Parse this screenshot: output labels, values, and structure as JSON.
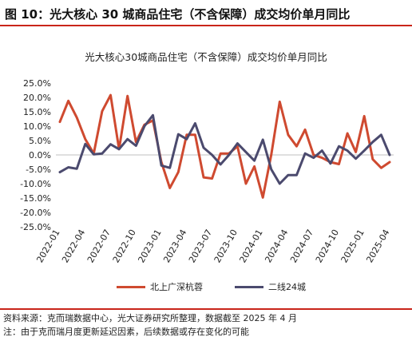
{
  "figure_title": "图 10：光大核心 30 城商品住宅（不含保障）成交均价单月同比",
  "source_note": "资料来源：克而瑞数据中心，光大证券研究所整理，数据截至 2025 年 4 月",
  "footnote": "注：由于克而瑞月度更新延迟因素，后续数据或存在变化的可能",
  "colors": {
    "accent_rule": "#c9251a",
    "series_1": "#cf4a30",
    "series_2": "#4b4a6e"
  },
  "chart_data": {
    "type": "line",
    "title": "光大核心30城商品住宅（不含保障）成交均价单月同比",
    "xlabel": "",
    "ylabel": "",
    "ylim": [
      -25,
      25
    ],
    "ytick_values": [
      -25,
      -20,
      -15,
      -10,
      -5,
      0,
      5,
      10,
      15,
      20,
      25
    ],
    "ytick_labels": [
      "-25.0%",
      "-20.0%",
      "-15.0%",
      "-10.0%",
      "-5.0%",
      "0.0%",
      "5.0%",
      "10.0%",
      "15.0%",
      "20.0%",
      "25.0%"
    ],
    "xtick_labels": [
      "2022-01",
      "2022-04",
      "2022-07",
      "2022-10",
      "2023-01",
      "2023-04",
      "2023-07",
      "2023-10",
      "2024-01",
      "2024-04",
      "2024-07",
      "2024-10",
      "2025-01",
      "2025-04"
    ],
    "x": [
      "2022-01",
      "2022-02",
      "2022-03",
      "2022-04",
      "2022-05",
      "2022-06",
      "2022-07",
      "2022-08",
      "2022-09",
      "2022-10",
      "2022-11",
      "2022-12",
      "2023-01",
      "2023-02",
      "2023-03",
      "2023-04",
      "2023-05",
      "2023-06",
      "2023-07",
      "2023-08",
      "2023-09",
      "2023-10",
      "2023-11",
      "2023-12",
      "2024-01",
      "2024-02",
      "2024-03",
      "2024-04",
      "2024-05",
      "2024-06",
      "2024-07",
      "2024-08",
      "2024-09",
      "2024-10",
      "2024-11",
      "2024-12",
      "2025-01",
      "2025-02",
      "2025-03",
      "2025-04"
    ],
    "series": [
      {
        "name": "北上广深杭蓉",
        "color": "#cf4a30",
        "values": [
          11.5,
          18.8,
          13.0,
          5.5,
          0.5,
          15.2,
          20.8,
          2.0,
          20.5,
          4.5,
          10.5,
          12.0,
          -2.5,
          -11.5,
          -6.0,
          7.0,
          7.0,
          -7.8,
          -8.2,
          0.5,
          0.5,
          3.0,
          -10.0,
          -4.0,
          -14.8,
          0.0,
          18.5,
          7.0,
          3.0,
          8.8,
          0.0,
          -1.0,
          -2.5,
          -3.2,
          7.5,
          1.0,
          13.5,
          -1.5,
          -4.5,
          -2.5
        ]
      },
      {
        "name": "二线24城",
        "color": "#4b4a6e",
        "values": [
          -6.0,
          -4.3,
          -4.8,
          3.8,
          0.2,
          0.5,
          3.7,
          2.0,
          5.5,
          3.2,
          10.0,
          13.8,
          -3.7,
          -4.5,
          7.2,
          5.5,
          11.0,
          2.5,
          0.0,
          -3.3,
          0.0,
          4.0,
          1.0,
          -2.0,
          5.3,
          -5.0,
          -10.0,
          -7.0,
          -7.0,
          0.5,
          -1.0,
          1.5,
          -3.0,
          3.0,
          1.5,
          -1.3,
          1.5,
          4.5,
          7.0,
          0.0
        ]
      }
    ],
    "grid": false,
    "legend_position": "bottom-center"
  }
}
